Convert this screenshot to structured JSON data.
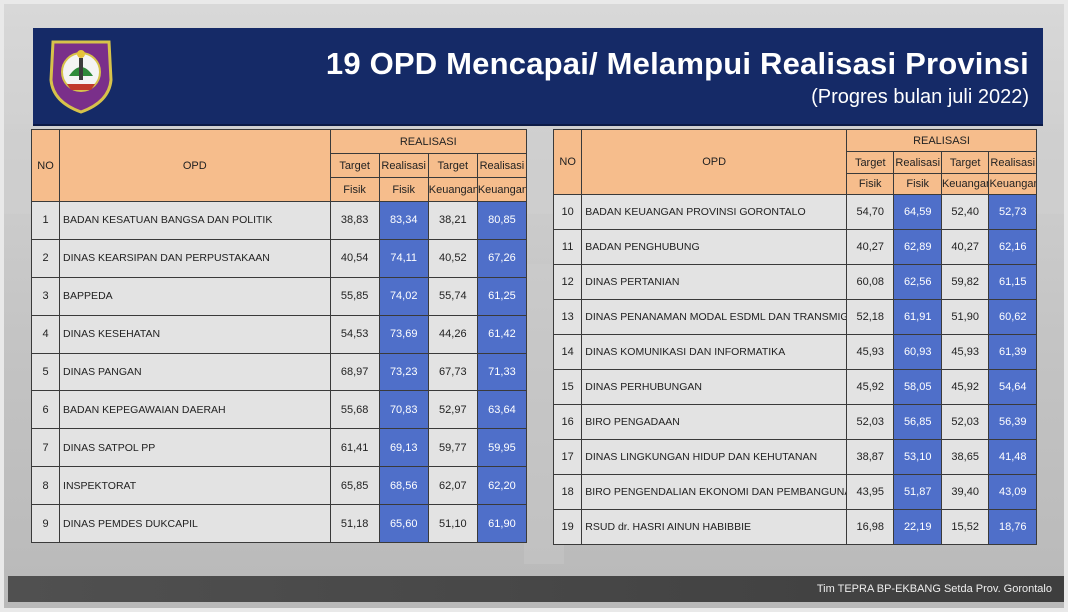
{
  "header": {
    "title": "19 OPD Mencapai/ Melampui Realisasi Provinsi",
    "subtitle": "(Progres bulan juli 2022)"
  },
  "columns": {
    "no": "NO",
    "opd": "OPD",
    "group": "REALISASI",
    "target_fisik": [
      "Target",
      "Fisik"
    ],
    "realisasi_fisik": [
      "Realisasi",
      "Fisik"
    ],
    "target_keuangan": [
      "Target",
      "Keuangan"
    ],
    "realisasi_keuangan": [
      "Realisasi",
      "Keuangan"
    ]
  },
  "left_table": [
    {
      "no": "1",
      "opd": "BADAN KESATUAN BANGSA DAN POLITIK",
      "tf": "38,83",
      "rf": "83,34",
      "tk": "38,21",
      "rk": "80,85"
    },
    {
      "no": "2",
      "opd": "DINAS KEARSIPAN DAN PERPUSTAKAAN",
      "tf": "40,54",
      "rf": "74,11",
      "tk": "40,52",
      "rk": "67,26"
    },
    {
      "no": "3",
      "opd": "BAPPEDA",
      "tf": "55,85",
      "rf": "74,02",
      "tk": "55,74",
      "rk": "61,25"
    },
    {
      "no": "4",
      "opd": "DINAS KESEHATAN",
      "tf": "54,53",
      "rf": "73,69",
      "tk": "44,26",
      "rk": "61,42"
    },
    {
      "no": "5",
      "opd": "DINAS PANGAN",
      "tf": "68,97",
      "rf": "73,23",
      "tk": "67,73",
      "rk": "71,33"
    },
    {
      "no": "6",
      "opd": "BADAN KEPEGAWAIAN DAERAH",
      "tf": "55,68",
      "rf": "70,83",
      "tk": "52,97",
      "rk": "63,64"
    },
    {
      "no": "7",
      "opd": "DINAS SATPOL PP",
      "tf": "61,41",
      "rf": "69,13",
      "tk": "59,77",
      "rk": "59,95"
    },
    {
      "no": "8",
      "opd": "INSPEKTORAT",
      "tf": "65,85",
      "rf": "68,56",
      "tk": "62,07",
      "rk": "62,20"
    },
    {
      "no": "9",
      "opd": "DINAS PEMDES DUKCAPIL",
      "tf": "51,18",
      "rf": "65,60",
      "tk": "51,10",
      "rk": "61,90"
    }
  ],
  "right_table": [
    {
      "no": "10",
      "opd": "BADAN KEUANGAN PROVINSI GORONTALO",
      "tf": "54,70",
      "rf": "64,59",
      "tk": "52,40",
      "rk": "52,73"
    },
    {
      "no": "11",
      "opd": "BADAN PENGHUBUNG",
      "tf": "40,27",
      "rf": "62,89",
      "tk": "40,27",
      "rk": "62,16"
    },
    {
      "no": "12",
      "opd": "DINAS PERTANIAN",
      "tf": "60,08",
      "rf": "62,56",
      "tk": "59,82",
      "rk": "61,15"
    },
    {
      "no": "13",
      "opd": "DINAS PENANAMAN MODAL ESDML DAN TRANSMIGRASI",
      "tf": "52,18",
      "rf": "61,91",
      "tk": "51,90",
      "rk": "60,62"
    },
    {
      "no": "14",
      "opd": "DINAS KOMUNIKASI DAN INFORMATIKA",
      "tf": "45,93",
      "rf": "60,93",
      "tk": "45,93",
      "rk": "61,39"
    },
    {
      "no": "15",
      "opd": "DINAS PERHUBUNGAN",
      "tf": "45,92",
      "rf": "58,05",
      "tk": "45,92",
      "rk": "54,64"
    },
    {
      "no": "16",
      "opd": "BIRO PENGADAAN",
      "tf": "52,03",
      "rf": "56,85",
      "tk": "52,03",
      "rk": "56,39"
    },
    {
      "no": "17",
      "opd": "DINAS LINGKUNGAN HIDUP DAN KEHUTANAN",
      "tf": "38,87",
      "rf": "53,10",
      "tk": "38,65",
      "rk": "41,48"
    },
    {
      "no": "18",
      "opd": "BIRO PENGENDALIAN EKONOMI DAN PEMBANGUNAN",
      "tf": "43,95",
      "rf": "51,87",
      "tk": "39,40",
      "rk": "43,09"
    },
    {
      "no": "19",
      "opd": "RSUD dr. HASRI AINUN HABIBBIE",
      "tf": "16,98",
      "rf": "22,19",
      "tk": "15,52",
      "rk": "18,76"
    }
  ],
  "footer": {
    "credit": "Tim TEPRA BP-EKBANG Setda Prov. Gorontalo"
  },
  "colors": {
    "banner": "#152a67",
    "header_cells": "#f6bd8c",
    "highlight_cells": "#4f6fc9",
    "body_cells": "#e3e3e3"
  },
  "icons": {
    "logo": "gorontalo-province-emblem"
  }
}
